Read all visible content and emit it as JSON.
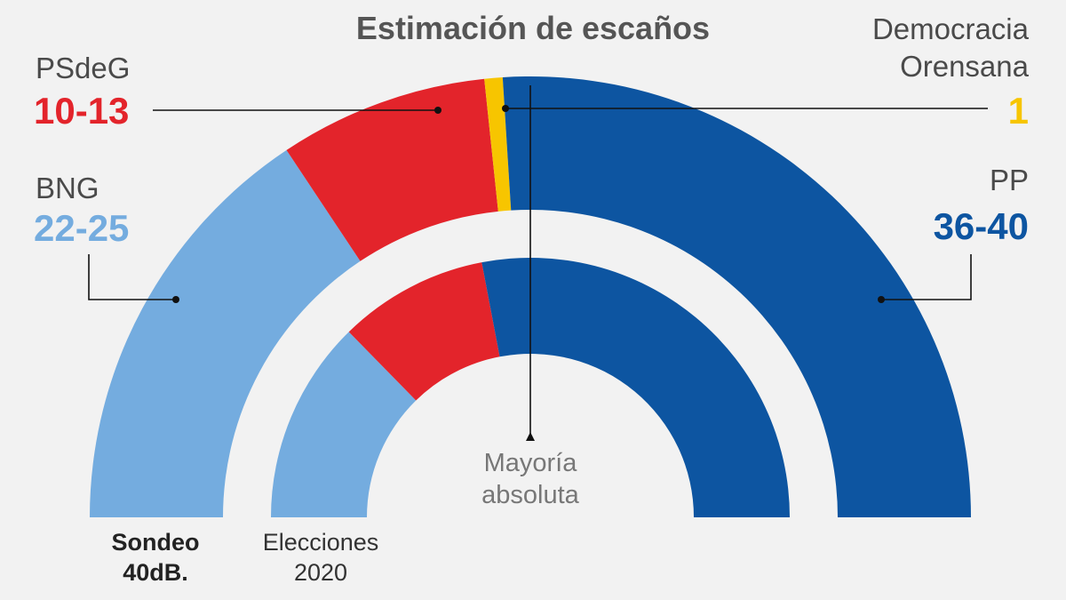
{
  "title": "Estimación de escaños",
  "colors": {
    "BNG": "#74acdf",
    "PSdeG": "#e3242b",
    "DO": "#f7c500",
    "PP": "#0d55a1"
  },
  "labels": {
    "psdeg": {
      "name": "PSdeG",
      "seats": "10-13"
    },
    "bng": {
      "name": "BNG",
      "seats": "22-25"
    },
    "do": {
      "name_line1": "Democracia",
      "name_line2": "Orensana",
      "seats": "1"
    },
    "pp": {
      "name": "PP",
      "seats": "36-40"
    }
  },
  "majority": {
    "line1": "Mayoría",
    "line2": "absoluta"
  },
  "footer": {
    "poll_line1": "Sondeo",
    "poll_line2": "40dB.",
    "elections_line1": "Elecciones",
    "elections_line2": "2020"
  },
  "chart_data": {
    "type": "pie",
    "subtype": "parliament-hemicycle",
    "total_seats": 75,
    "majority_seats": 38,
    "rings": [
      {
        "name": "Sondeo 40dB.",
        "segments": [
          {
            "party": "BNG",
            "seats": 23.5,
            "label": "22-25"
          },
          {
            "party": "PSdeG",
            "seats": 11.5,
            "label": "10-13"
          },
          {
            "party": "DO",
            "seats": 1,
            "label": "1"
          },
          {
            "party": "PP",
            "seats": 39,
            "label": "36-40"
          }
        ]
      },
      {
        "name": "Elecciones 2020",
        "segments": [
          {
            "party": "BNG",
            "seats": 19
          },
          {
            "party": "PSdeG",
            "seats": 14
          },
          {
            "party": "PP",
            "seats": 42
          }
        ]
      }
    ]
  }
}
